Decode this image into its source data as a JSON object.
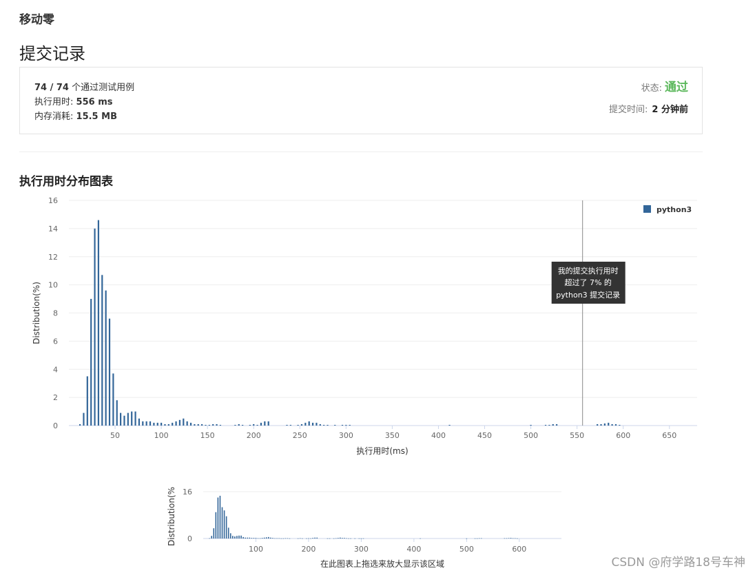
{
  "problem": {
    "title": "移动零"
  },
  "section_title": "提交记录",
  "result": {
    "tests_passed": "74 / 74",
    "tests_suffix": "个通过测试用例",
    "runtime_label": "执行用时:",
    "runtime_value": "556 ms",
    "memory_label": "内存消耗:",
    "memory_value": "15.5 MB",
    "status_label": "状态:",
    "status_value": "通过",
    "submit_time_label": "提交时间:",
    "submit_time_value": "2 分钟前",
    "status_color": "#5cb85c"
  },
  "chart_title": "执行用时分布图表",
  "tooltip": {
    "line1": "我的提交执行用时",
    "line2": "超过了 7% 的",
    "line3": "python3 提交记录"
  },
  "navigator_hint": "在此图表上拖选来放大显示该区域",
  "watermark": "CSDN @府学路18号车神",
  "chart_data": {
    "type": "bar",
    "xlabel": "执行用时(ms)",
    "ylabel": "Distribution(%)",
    "xlim": [
      0,
      680
    ],
    "ylim": [
      0,
      16
    ],
    "yticks": [
      0,
      2,
      4,
      6,
      8,
      10,
      12,
      14,
      16
    ],
    "xticks": [
      50,
      100,
      150,
      200,
      250,
      300,
      350,
      400,
      450,
      500,
      550,
      600,
      650
    ],
    "legend": {
      "position": "top-right",
      "label": "python3"
    },
    "series_color": "#336699",
    "marker_value": 556,
    "series": [
      {
        "name": "python3",
        "x": [
          12,
          16,
          20,
          24,
          28,
          32,
          36,
          40,
          44,
          48,
          52,
          56,
          60,
          64,
          68,
          72,
          76,
          80,
          84,
          88,
          92,
          96,
          100,
          104,
          108,
          112,
          116,
          120,
          124,
          128,
          132,
          136,
          140,
          144,
          148,
          152,
          156,
          160,
          164,
          180,
          184,
          188,
          196,
          200,
          204,
          208,
          212,
          216,
          236,
          240,
          248,
          252,
          256,
          260,
          264,
          268,
          272,
          276,
          280,
          288,
          296,
          300,
          304,
          412,
          500,
          516,
          520,
          524,
          528,
          572,
          576,
          580,
          584,
          588,
          592,
          596
        ],
        "values": [
          0.1,
          0.9,
          3.5,
          9.0,
          14.0,
          14.6,
          10.7,
          9.6,
          7.6,
          3.7,
          1.8,
          0.9,
          0.7,
          0.9,
          1.0,
          1.0,
          0.5,
          0.3,
          0.3,
          0.3,
          0.2,
          0.2,
          0.2,
          0.1,
          0.1,
          0.2,
          0.3,
          0.4,
          0.5,
          0.3,
          0.2,
          0.1,
          0.1,
          0.1,
          0.05,
          0.05,
          0.1,
          0.1,
          0.05,
          0.05,
          0.1,
          0.05,
          0.05,
          0.1,
          0.05,
          0.2,
          0.3,
          0.3,
          0.05,
          0.05,
          0.05,
          0.1,
          0.2,
          0.3,
          0.2,
          0.2,
          0.1,
          0.05,
          0.05,
          0.05,
          0.05,
          0.05,
          0.05,
          0.05,
          0.05,
          0.05,
          0.05,
          0.1,
          0.1,
          0.1,
          0.1,
          0.15,
          0.2,
          0.1,
          0.1,
          0.05
        ]
      }
    ],
    "navigator": {
      "ylim": [
        0,
        16
      ],
      "yticks": [
        0,
        16
      ],
      "xticks": [
        100,
        200,
        300,
        400,
        500,
        600
      ],
      "ylabel": "Distribution(%"
    }
  }
}
